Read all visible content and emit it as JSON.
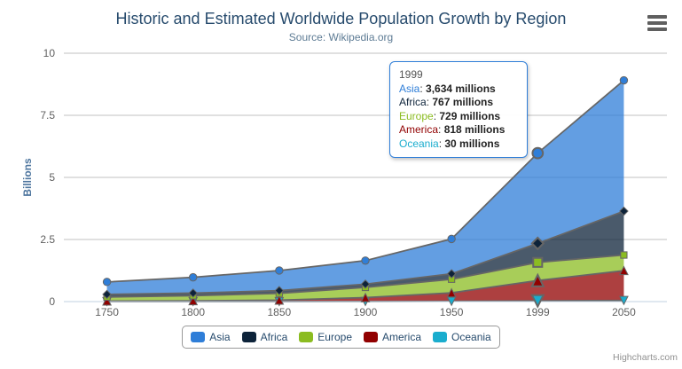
{
  "title": "Historic and Estimated Worldwide Population Growth by Region",
  "subtitle": "Source: Wikipedia.org",
  "credits": "Highcharts.com",
  "colors": {
    "title": "#274b6d",
    "subtitle": "#5d7b94",
    "axis_label": "#606060",
    "grid_line": "#c0c0c0",
    "x_axis_line": "#c0d0e0",
    "series_outline": "#666666",
    "legend_text": "#274b6d",
    "legend_border": "#999999",
    "credits_text": "#909090",
    "menu_icon": "#5f5f5f"
  },
  "chart_data": {
    "type": "area",
    "stacking": "normal",
    "title": "Historic and Estimated Worldwide Population Growth by Region",
    "subtitle": "Source: Wikipedia.org",
    "categories": [
      "1750",
      "1800",
      "1850",
      "1900",
      "1950",
      "1999",
      "2050"
    ],
    "series": [
      {
        "name": "Asia",
        "color": "#2f7ed8",
        "marker": "circle",
        "values": [
          502,
          635,
          809,
          947,
          1402,
          3634,
          5268
        ]
      },
      {
        "name": "Africa",
        "color": "#0d233a",
        "marker": "diamond",
        "values": [
          106,
          107,
          111,
          133,
          221,
          767,
          1766
        ]
      },
      {
        "name": "Europe",
        "color": "#8bbc21",
        "marker": "square",
        "values": [
          163,
          203,
          276,
          408,
          547,
          729,
          628
        ]
      },
      {
        "name": "America",
        "color": "#910000",
        "marker": "triangle",
        "values": [
          18,
          31,
          54,
          156,
          339,
          818,
          1201
        ]
      },
      {
        "name": "Oceania",
        "color": "#1aadce",
        "marker": "triangle-down",
        "values": [
          2,
          2,
          2,
          6,
          13,
          30,
          46
        ]
      }
    ],
    "stack_bottom_to_top": [
      "Oceania",
      "America",
      "Europe",
      "Africa",
      "Asia"
    ],
    "values_unit": "millions",
    "y_axis_unit": "billions",
    "xlabel": "",
    "ylabel": "Billions",
    "ylim": [
      0,
      10
    ],
    "yticks": [
      0,
      2.5,
      5,
      7.5,
      10
    ],
    "grid": true,
    "legend_position": "bottom",
    "fill_opacity": 0.75,
    "hover_category_index": 5
  },
  "tooltip": {
    "header": "1999",
    "border_color": "#2f7ed8",
    "rows": [
      {
        "name": "Asia",
        "value": "3,634 millions"
      },
      {
        "name": "Africa",
        "value": "767 millions"
      },
      {
        "name": "Europe",
        "value": "729 millions"
      },
      {
        "name": "America",
        "value": "818 millions"
      },
      {
        "name": "Oceania",
        "value": "30 millions"
      }
    ]
  }
}
